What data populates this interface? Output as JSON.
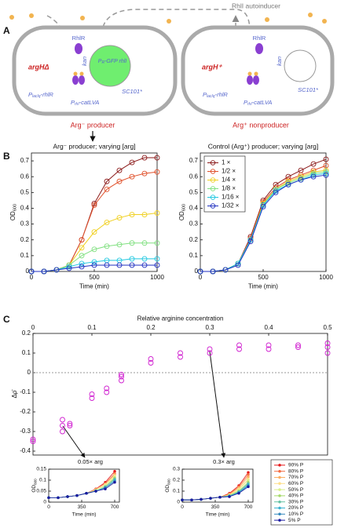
{
  "panels": [
    "A",
    "B",
    "C"
  ],
  "diagram": {
    "autoinducer": "RhlI autoinducer",
    "left": {
      "strain": "argHΔ",
      "regulator": "RhlR",
      "resistance": "kan",
      "plasmid": "SC101*",
      "reporter": [
        "P",
        "R",
        "-GFP rhlI"
      ],
      "promoter1": [
        "P",
        "lacIq",
        "-rhlR"
      ],
      "promoter2": [
        "P",
        "rhl",
        "-catLVA"
      ],
      "label": "Arg⁻ producer"
    },
    "right": {
      "strain": "argH⁺",
      "regulator": "RhlR",
      "resistance": "kan",
      "plasmid": "SC101*",
      "promoter1": [
        "P",
        "lacIq",
        "-rhlR"
      ],
      "promoter2": [
        "P",
        "rhl",
        "-catLVA"
      ],
      "label": "Arg⁺ nonproducer"
    }
  },
  "chart_data": [
    {
      "type": "line",
      "title": "Arg⁻ producer; varying [arg]",
      "xlabel": "Time (min)",
      "ylabel": "OD",
      "ylabel_sub": "600",
      "marker": "open-circle",
      "x": [
        0,
        100,
        200,
        300,
        400,
        500,
        600,
        700,
        800,
        900,
        1000
      ],
      "xlim": [
        0,
        1000
      ],
      "xticks": [
        0,
        500,
        1000
      ],
      "ylim": [
        0,
        0.75
      ],
      "yticks": [
        0,
        0.1,
        0.2,
        0.3,
        0.4,
        0.5,
        0.6,
        0.7
      ],
      "series": [
        {
          "color": "#8b1a1a",
          "values": [
            0,
            0,
            0.01,
            0.04,
            0.2,
            0.43,
            0.57,
            0.64,
            0.69,
            0.72,
            0.72
          ]
        },
        {
          "color": "#e0502a",
          "values": [
            0,
            0,
            0.01,
            0.04,
            0.2,
            0.42,
            0.52,
            0.57,
            0.6,
            0.62,
            0.63
          ]
        },
        {
          "color": "#f0d020",
          "values": [
            0,
            0,
            0.01,
            0.04,
            0.15,
            0.25,
            0.31,
            0.34,
            0.36,
            0.36,
            0.37
          ]
        },
        {
          "color": "#80e080",
          "values": [
            0,
            0,
            0.01,
            0.04,
            0.1,
            0.14,
            0.16,
            0.17,
            0.18,
            0.18,
            0.18
          ]
        },
        {
          "color": "#20c8e0",
          "values": [
            0,
            0,
            0.01,
            0.03,
            0.05,
            0.06,
            0.07,
            0.07,
            0.08,
            0.08,
            0.08
          ]
        },
        {
          "color": "#2030c0",
          "values": [
            0,
            0,
            0.01,
            0.02,
            0.03,
            0.04,
            0.04,
            0.04,
            0.04,
            0.04,
            0.04
          ]
        }
      ]
    },
    {
      "type": "line",
      "title": "Control (Arg⁺) producer; varying [arg]",
      "xlabel": "Time (min)",
      "ylabel": "OD",
      "ylabel_sub": "600",
      "marker": "open-circle",
      "legend": "upper left",
      "x": [
        0,
        100,
        200,
        300,
        400,
        500,
        600,
        700,
        800,
        900,
        1000
      ],
      "xlim": [
        0,
        1000
      ],
      "xticks": [
        0,
        500,
        1000
      ],
      "ylim": [
        0,
        0.75
      ],
      "yticks": [
        0,
        0.1,
        0.2,
        0.3,
        0.4,
        0.5,
        0.6,
        0.7
      ],
      "series": [
        {
          "name": "1 ×",
          "color": "#8b1a1a",
          "values": [
            0,
            0,
            0.01,
            0.05,
            0.22,
            0.45,
            0.55,
            0.6,
            0.64,
            0.68,
            0.71
          ]
        },
        {
          "name": "1/2 ×",
          "color": "#e0502a",
          "values": [
            0,
            0,
            0.01,
            0.05,
            0.21,
            0.44,
            0.53,
            0.58,
            0.61,
            0.64,
            0.67
          ]
        },
        {
          "name": "1/4 ×",
          "color": "#f0d020",
          "values": [
            0,
            0,
            0.01,
            0.05,
            0.2,
            0.43,
            0.52,
            0.57,
            0.6,
            0.63,
            0.64
          ]
        },
        {
          "name": "1/8 ×",
          "color": "#80e080",
          "values": [
            0,
            0,
            0.01,
            0.05,
            0.2,
            0.42,
            0.52,
            0.56,
            0.59,
            0.62,
            0.63
          ]
        },
        {
          "name": "1/16 ×",
          "color": "#20c8e0",
          "values": [
            0,
            0,
            0.01,
            0.05,
            0.2,
            0.42,
            0.51,
            0.55,
            0.58,
            0.61,
            0.62
          ]
        },
        {
          "name": "1/32 ×",
          "color": "#2030c0",
          "values": [
            0,
            0,
            0.01,
            0.04,
            0.19,
            0.41,
            0.5,
            0.55,
            0.58,
            0.6,
            0.61
          ]
        }
      ]
    },
    {
      "type": "scatter",
      "xlabel": "Relative arginine concentration",
      "ylabel": "Δρ̄",
      "color": "#d020d0",
      "reference_line": 0,
      "xlim": [
        0,
        0.5
      ],
      "xticks": [
        0,
        0.1,
        0.2,
        0.3,
        0.4,
        0.5
      ],
      "ylim": [
        -0.42,
        0.2
      ],
      "yticks": [
        -0.4,
        -0.3,
        -0.2,
        -0.1,
        0,
        0.1,
        0.2
      ],
      "x": [
        0,
        0,
        0.05,
        0.05,
        0.05,
        0.0625,
        0.0625,
        0.1,
        0.1,
        0.125,
        0.125,
        0.15,
        0.15,
        0.15,
        0.2,
        0.2,
        0.25,
        0.25,
        0.3,
        0.3,
        0.35,
        0.35,
        0.4,
        0.4,
        0.45,
        0.45,
        0.5,
        0.5,
        0.5
      ],
      "values": [
        -0.35,
        -0.34,
        -0.3,
        -0.27,
        -0.24,
        -0.27,
        -0.26,
        -0.13,
        -0.11,
        -0.1,
        -0.08,
        -0.04,
        -0.02,
        -0.01,
        0.05,
        0.07,
        0.08,
        0.1,
        0.1,
        0.12,
        0.12,
        0.14,
        0.12,
        0.14,
        0.13,
        0.14,
        0.1,
        0.13,
        0.15
      ]
    },
    {
      "type": "line",
      "annotation": "0.05× arg",
      "xlabel": "Time (min)",
      "ylabel": "OD",
      "ylabel_sub": "600",
      "marker": "dot",
      "x": [
        0,
        100,
        200,
        300,
        400,
        500,
        600,
        700
      ],
      "xlim": [
        0,
        750
      ],
      "xticks": [
        0,
        350,
        700
      ],
      "ylim": [
        0,
        0.15
      ],
      "yticks": [
        0,
        0.05,
        0.1,
        0.15
      ],
      "series": [
        {
          "color": "#e41a1c",
          "values": [
            0.02,
            0.02,
            0.025,
            0.03,
            0.04,
            0.06,
            0.09,
            0.14
          ]
        },
        {
          "color": "#f46d43",
          "values": [
            0.02,
            0.02,
            0.025,
            0.03,
            0.04,
            0.06,
            0.085,
            0.13
          ]
        },
        {
          "color": "#fdae61",
          "values": [
            0.02,
            0.02,
            0.025,
            0.03,
            0.04,
            0.055,
            0.08,
            0.125
          ]
        },
        {
          "color": "#fee08b",
          "values": [
            0.02,
            0.02,
            0.025,
            0.03,
            0.04,
            0.055,
            0.08,
            0.12
          ]
        },
        {
          "color": "#d9ef8b",
          "values": [
            0.02,
            0.02,
            0.025,
            0.03,
            0.04,
            0.055,
            0.075,
            0.115
          ]
        },
        {
          "color": "#a6d96a",
          "values": [
            0.02,
            0.02,
            0.025,
            0.03,
            0.04,
            0.05,
            0.07,
            0.11
          ]
        },
        {
          "color": "#66c2a5",
          "values": [
            0.02,
            0.02,
            0.025,
            0.03,
            0.04,
            0.05,
            0.07,
            0.105
          ]
        },
        {
          "color": "#3bb3d1",
          "values": [
            0.02,
            0.02,
            0.025,
            0.03,
            0.04,
            0.05,
            0.065,
            0.1
          ]
        },
        {
          "color": "#3288bd",
          "values": [
            0.02,
            0.02,
            0.025,
            0.03,
            0.04,
            0.05,
            0.065,
            0.095
          ]
        },
        {
          "color": "#1a1aa0",
          "values": [
            0.02,
            0.02,
            0.025,
            0.03,
            0.04,
            0.05,
            0.06,
            0.09
          ]
        }
      ]
    },
    {
      "type": "line",
      "annotation": "0.3× arg",
      "xlabel": "Time (min)",
      "ylabel": "OD",
      "ylabel_sub": "600",
      "marker": "dot",
      "legend": "outside right",
      "x": [
        0,
        100,
        200,
        300,
        400,
        500,
        600,
        700
      ],
      "xlim": [
        0,
        750
      ],
      "xticks": [
        0,
        350,
        700
      ],
      "ylim": [
        0,
        0.3
      ],
      "yticks": [
        0,
        0.1,
        0.2,
        0.3
      ],
      "series": [
        {
          "name": "90% P",
          "color": "#e41a1c",
          "values": [
            0.02,
            0.02,
            0.025,
            0.035,
            0.045,
            0.08,
            0.15,
            0.27
          ]
        },
        {
          "name": "80% P",
          "color": "#f46d43",
          "values": [
            0.02,
            0.02,
            0.025,
            0.035,
            0.045,
            0.075,
            0.14,
            0.25
          ]
        },
        {
          "name": "70% P",
          "color": "#fdae61",
          "values": [
            0.02,
            0.02,
            0.025,
            0.035,
            0.045,
            0.07,
            0.13,
            0.23
          ]
        },
        {
          "name": "60% P",
          "color": "#fee08b",
          "values": [
            0.02,
            0.02,
            0.025,
            0.035,
            0.045,
            0.065,
            0.12,
            0.21
          ]
        },
        {
          "name": "50% P",
          "color": "#d9ef8b",
          "values": [
            0.02,
            0.02,
            0.025,
            0.035,
            0.045,
            0.06,
            0.11,
            0.2
          ]
        },
        {
          "name": "40% P",
          "color": "#a6d96a",
          "values": [
            0.02,
            0.02,
            0.025,
            0.035,
            0.045,
            0.06,
            0.1,
            0.18
          ]
        },
        {
          "name": "30% P",
          "color": "#66c2a5",
          "values": [
            0.02,
            0.02,
            0.025,
            0.035,
            0.045,
            0.055,
            0.095,
            0.17
          ]
        },
        {
          "name": "20% P",
          "color": "#3bb3d1",
          "values": [
            0.02,
            0.02,
            0.025,
            0.035,
            0.045,
            0.055,
            0.09,
            0.16
          ]
        },
        {
          "name": "10% P",
          "color": "#3288bd",
          "values": [
            0.02,
            0.02,
            0.025,
            0.035,
            0.045,
            0.05,
            0.085,
            0.15
          ]
        },
        {
          "name": "5% P",
          "color": "#1a1aa0",
          "values": [
            0.02,
            0.02,
            0.025,
            0.035,
            0.045,
            0.05,
            0.08,
            0.14
          ]
        }
      ]
    }
  ]
}
